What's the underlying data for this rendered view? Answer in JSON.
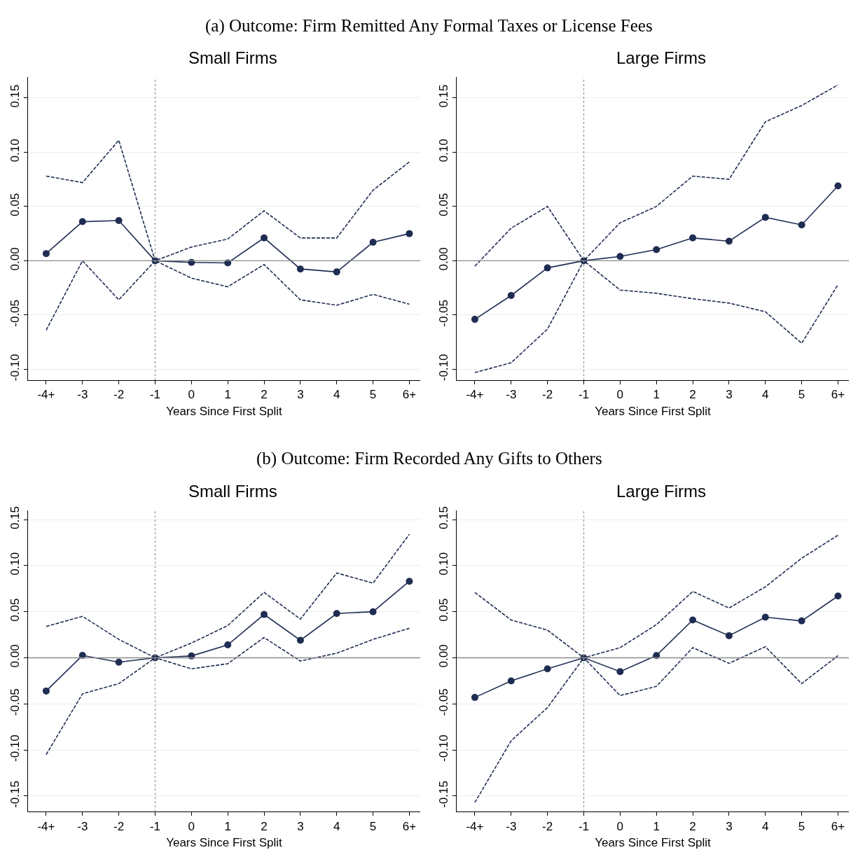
{
  "chart_data": [
    {
      "type": "line",
      "title": "Small Firms",
      "xlabel": "Years Since First Split",
      "annotations": [
        "(a) Outcome: Firm Remitted Any Formal Taxes or License Fees"
      ],
      "categories": [
        "-4+",
        "-3",
        "-2",
        "-1",
        "0",
        "1",
        "2",
        "3",
        "4",
        "5",
        "6+"
      ],
      "series": [
        {
          "color": "#1f2d52",
          "line_style": "solid",
          "marker": "circle",
          "values": [
            0.0066,
            0.036,
            0.037,
            0,
            -0.0015,
            -0.002,
            0.021,
            -0.0076,
            -0.0103,
            0.017,
            0.025
          ]
        },
        {
          "color": "#1f2d52",
          "line_style": "dashed",
          "marker": "none",
          "values": [
            0.078,
            0.072,
            0.111,
            0,
            0.0126,
            0.02,
            0.046,
            0.021,
            0.021,
            0.065,
            0.091
          ]
        },
        {
          "color": "#1f2d52",
          "line_style": "dashed",
          "marker": "none",
          "values": [
            -0.064,
            0.0,
            -0.036,
            0,
            -0.016,
            -0.024,
            -0.0035,
            -0.036,
            -0.041,
            -0.031,
            -0.04
          ]
        }
      ],
      "ylim": [
        -0.11,
        0.169
      ],
      "yticks": [
        {
          "value": -0.1,
          "label": "-0.10"
        },
        {
          "value": -0.05,
          "label": "-0.05"
        },
        {
          "value": 0,
          "label": "0.00"
        },
        {
          "value": 0.05,
          "label": "0.05"
        },
        {
          "value": 0.1,
          "label": "0.10"
        },
        {
          "value": 0.15,
          "label": "0.15"
        }
      ],
      "grid": "y",
      "ref_lines": [
        {
          "axis": "y",
          "value": 0,
          "color": "#8c8c8c",
          "line_style": "solid"
        },
        {
          "axis": "x",
          "value": "-1",
          "color": "#9a9a9a",
          "line_style": "dotted"
        }
      ]
    },
    {
      "type": "line",
      "title": "Large Firms",
      "xlabel": "Years Since First Split",
      "categories": [
        "-4+",
        "-3",
        "-2",
        "-1",
        "0",
        "1",
        "2",
        "3",
        "4",
        "5",
        "6+"
      ],
      "series": [
        {
          "color": "#1f2d52",
          "line_style": "solid",
          "marker": "circle",
          "values": [
            -0.054,
            -0.032,
            -0.0066,
            0,
            0.004,
            0.0103,
            0.021,
            0.018,
            0.04,
            0.033,
            0.069
          ]
        },
        {
          "color": "#1f2d52",
          "line_style": "dashed",
          "marker": "none",
          "values": [
            -0.005,
            0.03,
            0.05,
            0,
            0.035,
            0.05,
            0.078,
            0.075,
            0.128,
            0.143,
            0.162
          ]
        },
        {
          "color": "#1f2d52",
          "line_style": "dashed",
          "marker": "none",
          "values": [
            -0.103,
            -0.094,
            -0.063,
            0,
            -0.027,
            -0.03,
            -0.035,
            -0.039,
            -0.047,
            -0.076,
            -0.022
          ]
        }
      ],
      "ylim": [
        -0.11,
        0.169
      ],
      "yticks": [
        {
          "value": -0.1,
          "label": "-0.10"
        },
        {
          "value": -0.05,
          "label": "-0.05"
        },
        {
          "value": 0,
          "label": "0.00"
        },
        {
          "value": 0.05,
          "label": "0.05"
        },
        {
          "value": 0.1,
          "label": "0.10"
        },
        {
          "value": 0.15,
          "label": "0.15"
        }
      ],
      "grid": "y",
      "ref_lines": [
        {
          "axis": "y",
          "value": 0,
          "color": "#8c8c8c",
          "line_style": "solid"
        },
        {
          "axis": "x",
          "value": "-1",
          "color": "#9a9a9a",
          "line_style": "dotted"
        }
      ]
    },
    {
      "type": "line",
      "title": "Small Firms",
      "xlabel": "Years Since First Split",
      "annotations": [
        "(b) Outcome: Firm Recorded Any Gifts to Others"
      ],
      "categories": [
        "-4+",
        "-3",
        "-2",
        "-1",
        "0",
        "1",
        "2",
        "3",
        "4",
        "5",
        "6+"
      ],
      "series": [
        {
          "color": "#1f2d52",
          "line_style": "solid",
          "marker": "circle",
          "values": [
            -0.036,
            0.0026,
            -0.0047,
            0,
            0.002,
            0.014,
            0.047,
            0.019,
            0.048,
            0.05,
            0.083
          ]
        },
        {
          "color": "#1f2d52",
          "line_style": "dashed",
          "marker": "none",
          "values": [
            0.034,
            0.045,
            0.02,
            0,
            0.016,
            0.035,
            0.071,
            0.042,
            0.092,
            0.081,
            0.134
          ]
        },
        {
          "color": "#1f2d52",
          "line_style": "dashed",
          "marker": "none",
          "values": [
            -0.105,
            -0.039,
            -0.028,
            0,
            -0.012,
            -0.0064,
            0.022,
            -0.0035,
            0.005,
            0.02,
            0.032
          ]
        }
      ],
      "ylim": [
        -0.167,
        0.16
      ],
      "yticks": [
        {
          "value": -0.15,
          "label": "-0.15"
        },
        {
          "value": -0.1,
          "label": "-0.10"
        },
        {
          "value": -0.05,
          "label": "-0.05"
        },
        {
          "value": 0,
          "label": "0.00"
        },
        {
          "value": 0.05,
          "label": "0.05"
        },
        {
          "value": 0.1,
          "label": "0.10"
        },
        {
          "value": 0.15,
          "label": "0.15"
        }
      ],
      "grid": "y",
      "ref_lines": [
        {
          "axis": "y",
          "value": 0,
          "color": "#8c8c8c",
          "line_style": "solid"
        },
        {
          "axis": "x",
          "value": "-1",
          "color": "#9a9a9a",
          "line_style": "dotted"
        }
      ]
    },
    {
      "type": "line",
      "title": "Large Firms",
      "xlabel": "Years Since First Split",
      "categories": [
        "-4+",
        "-3",
        "-2",
        "-1",
        "0",
        "1",
        "2",
        "3",
        "4",
        "5",
        "6+"
      ],
      "series": [
        {
          "color": "#1f2d52",
          "line_style": "solid",
          "marker": "circle",
          "values": [
            -0.043,
            -0.025,
            -0.012,
            0,
            -0.015,
            0.0024,
            0.041,
            0.024,
            0.044,
            0.04,
            0.067
          ]
        },
        {
          "color": "#1f2d52",
          "line_style": "dashed",
          "marker": "none",
          "values": [
            0.071,
            0.041,
            0.03,
            0,
            0.011,
            0.036,
            0.072,
            0.054,
            0.077,
            0.108,
            0.133
          ]
        },
        {
          "color": "#1f2d52",
          "line_style": "dashed",
          "marker": "none",
          "values": [
            -0.157,
            -0.09,
            -0.054,
            0,
            -0.041,
            -0.031,
            0.011,
            -0.006,
            0.012,
            -0.028,
            0.0024
          ]
        }
      ],
      "ylim": [
        -0.167,
        0.16
      ],
      "yticks": [
        {
          "value": -0.15,
          "label": "-0.15"
        },
        {
          "value": -0.1,
          "label": "-0.10"
        },
        {
          "value": -0.05,
          "label": "-0.05"
        },
        {
          "value": 0,
          "label": "0.00"
        },
        {
          "value": 0.05,
          "label": "0.05"
        },
        {
          "value": 0.1,
          "label": "0.10"
        },
        {
          "value": 0.15,
          "label": "0.15"
        }
      ],
      "grid": "y",
      "ref_lines": [
        {
          "axis": "y",
          "value": 0,
          "color": "#8c8c8c",
          "line_style": "solid"
        },
        {
          "axis": "x",
          "value": "-1",
          "color": "#9a9a9a",
          "line_style": "dotted"
        }
      ]
    }
  ]
}
